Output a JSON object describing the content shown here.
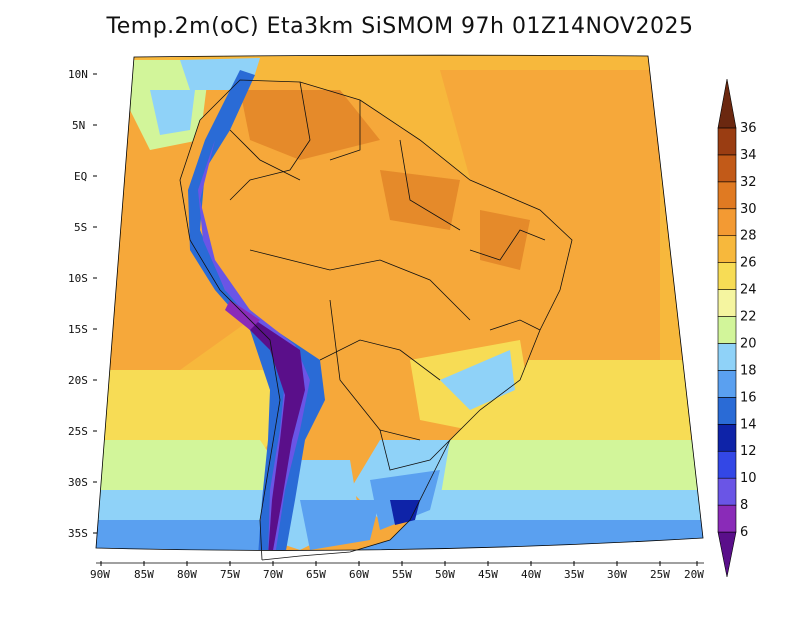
{
  "title": "Temp.2m(oC) Eta3km SiSMOM 97h 01Z14NOV2025",
  "map": {
    "lat_ticks": [
      "10N",
      "5N",
      "EQ",
      "5S",
      "10S",
      "15S",
      "20S",
      "25S",
      "30S",
      "35S"
    ],
    "lon_ticks": [
      "90W",
      "85W",
      "80W",
      "75W",
      "70W",
      "65W",
      "60W",
      "55W",
      "50W",
      "45W",
      "40W",
      "35W",
      "30W",
      "25W",
      "20W"
    ]
  },
  "colorbar": {
    "unit": "oC",
    "labels": [
      "6",
      "8",
      "10",
      "12",
      "14",
      "16",
      "18",
      "20",
      "22",
      "24",
      "26",
      "28",
      "30",
      "32",
      "34",
      "36"
    ],
    "colors": [
      "#5a0f8a",
      "#8a2bb8",
      "#6a55e6",
      "#3347e6",
      "#0e23a8",
      "#2a6bd6",
      "#5aa0f0",
      "#8fd2f8",
      "#d2f59a",
      "#f5f5a0",
      "#f7dc55",
      "#f7b83c",
      "#f39a33",
      "#e07a22",
      "#c25a18",
      "#9a3d12",
      "#6b2810"
    ]
  }
}
